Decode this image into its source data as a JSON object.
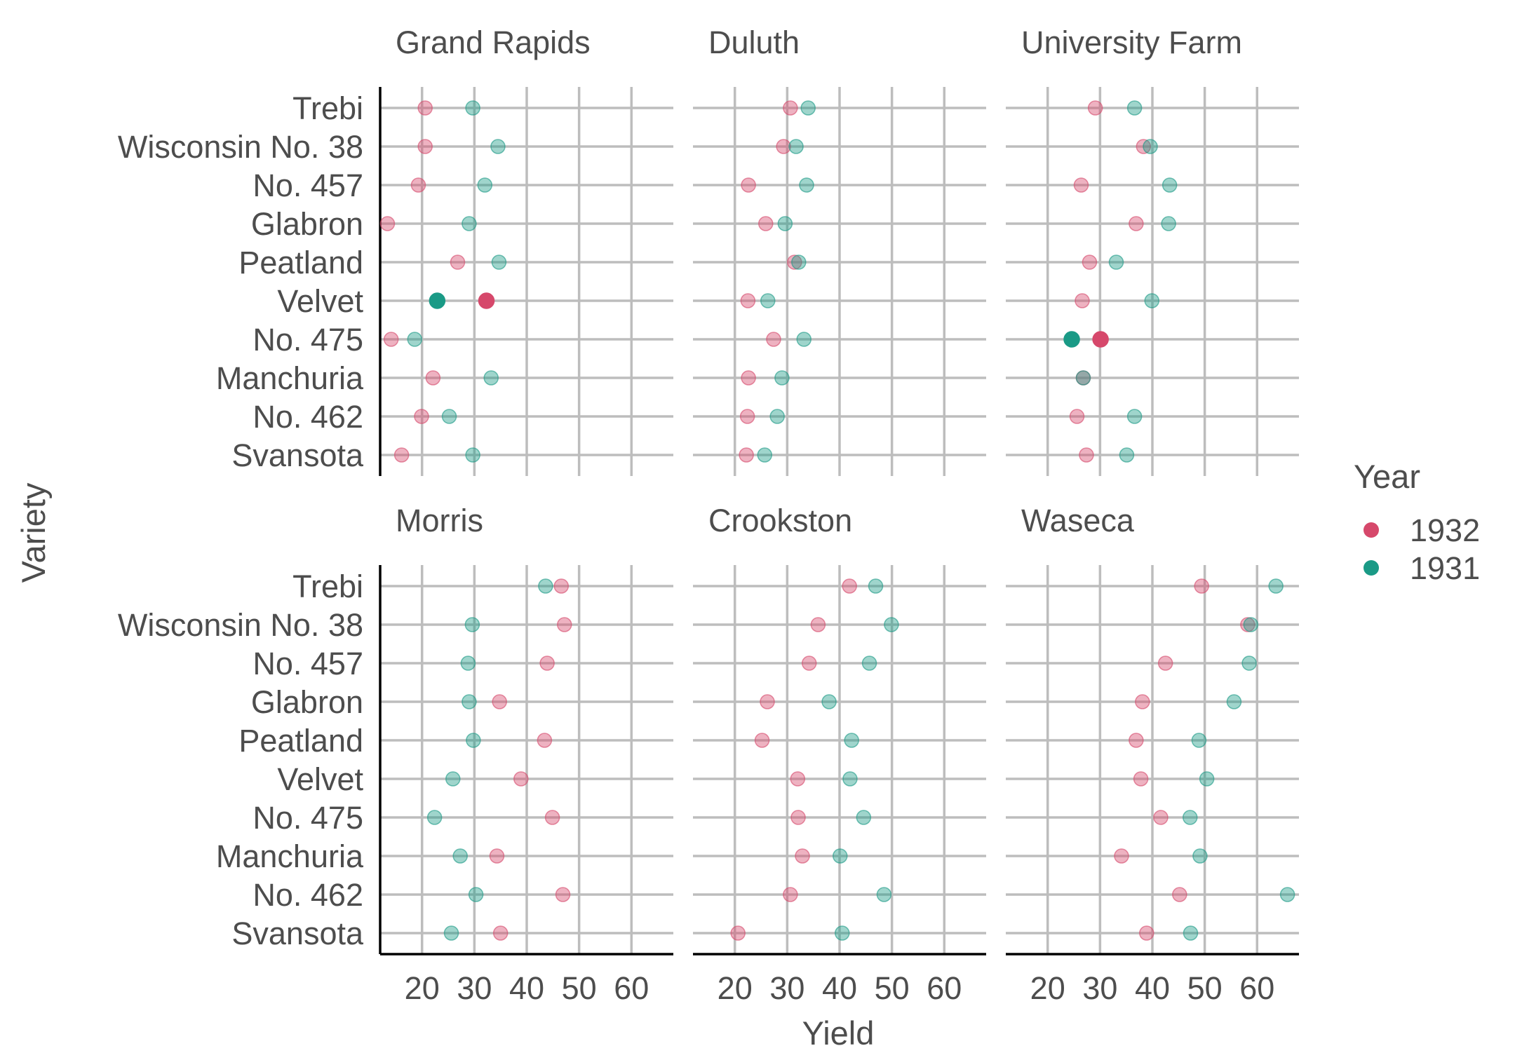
{
  "chart_data": {
    "type": "scatter",
    "xlabel": "Yield",
    "ylabel": "Variety",
    "xlim": [
      12,
      68
    ],
    "x_ticks": [
      20,
      30,
      40,
      50,
      60
    ],
    "grid": true,
    "varieties": [
      "Trebi",
      "Wisconsin No. 38",
      "No. 457",
      "Glabron",
      "Peatland",
      "Velvet",
      "No. 475",
      "Manchuria",
      "No. 462",
      "Svansota"
    ],
    "legend": {
      "title": "Year",
      "position": "right",
      "entries": [
        {
          "name": "1932",
          "color": "#d6486b"
        },
        {
          "name": "1931",
          "color": "#1a9a86"
        }
      ]
    },
    "facets": [
      {
        "site": "Grand Rapids",
        "highlight": "Velvet",
        "y1932": [
          20.6,
          20.6,
          19.3,
          13.4,
          26.8,
          32.3,
          14.1,
          22.1,
          19.9,
          16.1
        ],
        "y1931": [
          29.7,
          34.5,
          32.0,
          29.0,
          34.7,
          22.9,
          18.6,
          33.2,
          25.2,
          29.7
        ]
      },
      {
        "site": "Duluth",
        "highlight": "",
        "y1932": [
          30.6,
          29.3,
          22.6,
          25.9,
          31.4,
          22.5,
          27.4,
          22.6,
          22.4,
          22.2
        ],
        "y1931": [
          34.0,
          31.7,
          33.7,
          29.6,
          32.2,
          26.3,
          33.2,
          29.0,
          28.1,
          25.7
        ]
      },
      {
        "site": "University Farm",
        "highlight": "No. 475",
        "y1932": [
          29.1,
          38.3,
          26.4,
          36.9,
          28.0,
          26.6,
          30.1,
          26.8,
          25.6,
          27.4
        ],
        "y1931": [
          36.6,
          39.6,
          43.3,
          43.1,
          33.1,
          39.9,
          24.6,
          26.8,
          36.6,
          35.1
        ]
      },
      {
        "site": "Morris",
        "highlight": "",
        "y1932": [
          46.6,
          47.2,
          43.9,
          34.8,
          43.4,
          38.9,
          44.9,
          34.3,
          46.9,
          35.0
        ],
        "y1931": [
          43.6,
          29.6,
          28.8,
          29.0,
          29.8,
          25.9,
          22.4,
          27.3,
          30.3,
          25.6
        ]
      },
      {
        "site": "Crookston",
        "highlight": "",
        "y1932": [
          41.9,
          35.9,
          34.2,
          26.2,
          25.2,
          32.0,
          32.1,
          32.9,
          30.6,
          20.6
        ],
        "y1931": [
          46.9,
          49.9,
          45.7,
          38.0,
          42.3,
          42.0,
          44.6,
          40.1,
          48.5,
          40.5
        ]
      },
      {
        "site": "Waseca",
        "highlight": "",
        "y1932": [
          49.4,
          58.2,
          42.5,
          38.1,
          36.9,
          37.8,
          41.6,
          34.1,
          45.2,
          38.9
        ],
        "y1931": [
          63.6,
          58.8,
          58.5,
          55.6,
          48.9,
          50.4,
          47.2,
          49.1,
          65.8,
          47.3
        ]
      }
    ]
  }
}
